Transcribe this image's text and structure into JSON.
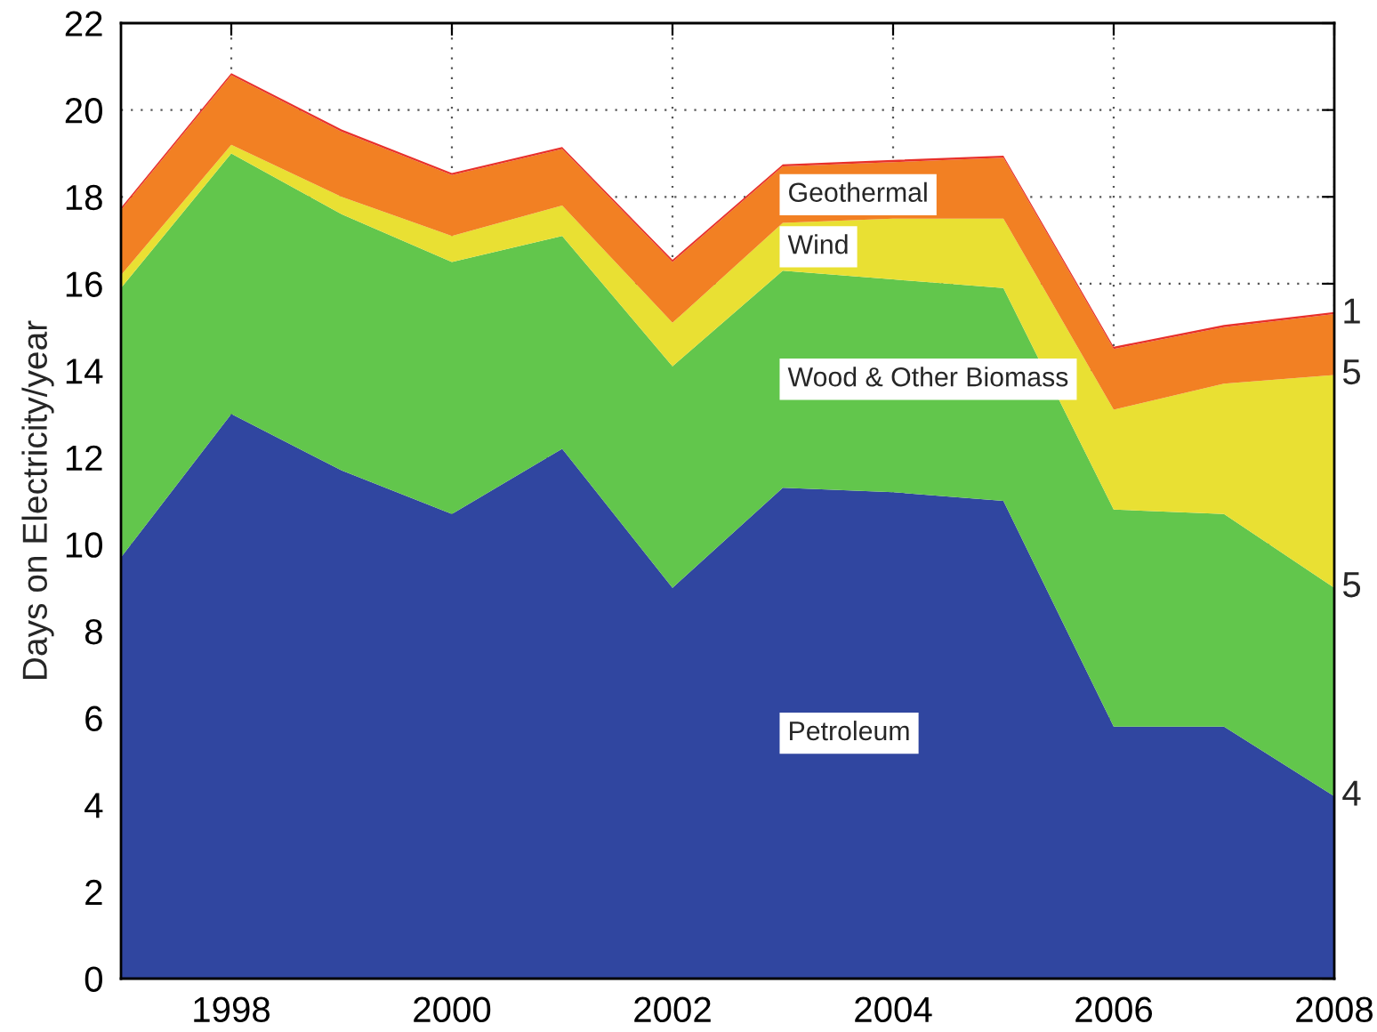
{
  "chart_data": {
    "type": "area",
    "stacked": true,
    "ylabel": "Days on Electricity/year",
    "x": [
      1997,
      1998,
      1999,
      2000,
      2001,
      2002,
      2003,
      2004,
      2005,
      2006,
      2007,
      2008
    ],
    "series": [
      {
        "name": "Petroleum",
        "color": "#3046a0",
        "values": [
          9.7,
          13.0,
          11.7,
          10.7,
          12.2,
          9.0,
          11.3,
          11.2,
          11.0,
          5.8,
          5.8,
          4.2
        ]
      },
      {
        "name": "Wood & Other Biomass",
        "color": "#62c64c",
        "values": [
          6.2,
          6.0,
          5.9,
          5.8,
          4.9,
          5.1,
          5.0,
          4.9,
          4.9,
          5.0,
          4.9,
          4.8
        ]
      },
      {
        "name": "Wind",
        "color": "#e9e033",
        "values": [
          0.3,
          0.2,
          0.4,
          0.6,
          0.7,
          1.0,
          1.1,
          1.4,
          1.6,
          2.3,
          3.0,
          4.9
        ]
      },
      {
        "name": "Geothermal",
        "color": "#f28023",
        "values": [
          1.5,
          1.6,
          1.5,
          1.4,
          1.3,
          1.4,
          1.3,
          1.3,
          1.4,
          1.4,
          1.3,
          1.4
        ]
      },
      {
        "color": "#e8302a",
        "values": [
          0.05,
          0.05,
          0.05,
          0.05,
          0.05,
          0.05,
          0.05,
          0.05,
          0.05,
          0.05,
          0.05,
          0.05
        ]
      }
    ],
    "xlim": [
      1997,
      2008
    ],
    "xticks": [
      1998,
      2000,
      2002,
      2004,
      2006,
      2008
    ],
    "ylim": [
      0,
      22
    ],
    "yticks": [
      0,
      2,
      4,
      6,
      8,
      10,
      12,
      14,
      16,
      18,
      20,
      22
    ],
    "grid": true,
    "legend": false,
    "annotations": [
      "1",
      "5",
      "5",
      "4"
    ]
  }
}
